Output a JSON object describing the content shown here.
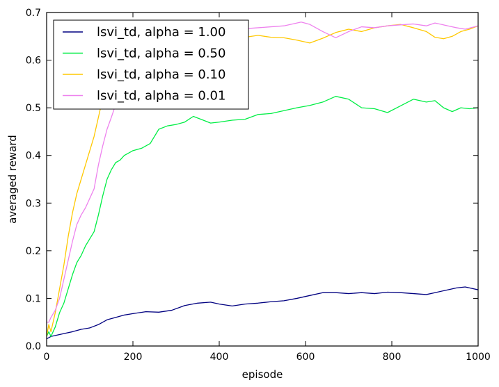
{
  "chart_data": {
    "type": "line",
    "title": "",
    "xlabel": "episode",
    "ylabel": "averaged reward",
    "xlim": [
      0,
      1000
    ],
    "ylim": [
      0,
      0.7
    ],
    "xticks": [
      0,
      200,
      400,
      600,
      800,
      1000
    ],
    "yticks": [
      0.0,
      0.1,
      0.2,
      0.3,
      0.4,
      0.5,
      0.6,
      0.7
    ],
    "xtick_labels": [
      "0",
      "200",
      "400",
      "600",
      "800",
      "1000"
    ],
    "ytick_labels": [
      "0.0",
      "0.1",
      "0.2",
      "0.3",
      "0.4",
      "0.5",
      "0.6",
      "0.7"
    ],
    "grid": false,
    "legend_position": "upper-left",
    "series": [
      {
        "name": "lsvi_td, alpha = 1.00",
        "color": "#000080",
        "x": [
          0,
          10,
          20,
          40,
          60,
          80,
          100,
          120,
          140,
          160,
          180,
          200,
          230,
          260,
          290,
          320,
          350,
          380,
          400,
          430,
          460,
          490,
          520,
          550,
          580,
          610,
          640,
          670,
          700,
          730,
          760,
          790,
          820,
          850,
          880,
          900,
          930,
          950,
          970,
          1000
        ],
        "y": [
          0.015,
          0.02,
          0.022,
          0.026,
          0.03,
          0.035,
          0.038,
          0.045,
          0.055,
          0.06,
          0.065,
          0.068,
          0.072,
          0.071,
          0.075,
          0.085,
          0.09,
          0.092,
          0.088,
          0.084,
          0.088,
          0.09,
          0.093,
          0.095,
          0.1,
          0.106,
          0.112,
          0.112,
          0.11,
          0.112,
          0.11,
          0.113,
          0.112,
          0.11,
          0.108,
          0.112,
          0.118,
          0.122,
          0.124,
          0.118
        ]
      },
      {
        "name": "lsvi_td, alpha = 0.50",
        "color": "#00ee44",
        "x": [
          0,
          5,
          10,
          20,
          30,
          40,
          50,
          60,
          70,
          80,
          90,
          100,
          110,
          120,
          130,
          140,
          150,
          160,
          170,
          180,
          190,
          200,
          220,
          240,
          260,
          280,
          300,
          320,
          340,
          360,
          380,
          400,
          430,
          460,
          490,
          520,
          550,
          580,
          610,
          640,
          670,
          700,
          730,
          760,
          790,
          820,
          850,
          880,
          900,
          920,
          940,
          960,
          980,
          1000
        ],
        "y": [
          0.02,
          0.03,
          0.02,
          0.04,
          0.07,
          0.09,
          0.12,
          0.15,
          0.175,
          0.19,
          0.21,
          0.225,
          0.24,
          0.275,
          0.315,
          0.35,
          0.37,
          0.385,
          0.39,
          0.4,
          0.405,
          0.41,
          0.415,
          0.425,
          0.455,
          0.462,
          0.465,
          0.47,
          0.482,
          0.475,
          0.468,
          0.47,
          0.474,
          0.476,
          0.486,
          0.488,
          0.494,
          0.5,
          0.505,
          0.512,
          0.524,
          0.518,
          0.5,
          0.498,
          0.49,
          0.504,
          0.518,
          0.512,
          0.515,
          0.5,
          0.492,
          0.5,
          0.498,
          0.5
        ]
      },
      {
        "name": "lsvi_td, alpha = 0.10",
        "color": "#ffc800",
        "x": [
          0,
          5,
          10,
          20,
          30,
          40,
          50,
          60,
          70,
          80,
          90,
          100,
          110,
          120,
          130,
          140,
          150,
          165,
          180,
          200,
          230,
          260,
          290,
          320,
          350,
          380,
          400,
          430,
          460,
          490,
          520,
          550,
          580,
          610,
          640,
          670,
          700,
          730,
          760,
          790,
          820,
          850,
          880,
          900,
          920,
          940,
          960,
          980,
          1000
        ],
        "y": [
          0.02,
          0.045,
          0.03,
          0.07,
          0.12,
          0.17,
          0.23,
          0.28,
          0.32,
          0.35,
          0.38,
          0.41,
          0.44,
          0.48,
          0.52,
          0.55,
          0.575,
          0.595,
          0.605,
          0.615,
          0.625,
          0.633,
          0.64,
          0.642,
          0.647,
          0.648,
          0.65,
          0.652,
          0.648,
          0.652,
          0.648,
          0.647,
          0.642,
          0.636,
          0.646,
          0.658,
          0.665,
          0.66,
          0.668,
          0.672,
          0.675,
          0.668,
          0.66,
          0.648,
          0.645,
          0.65,
          0.66,
          0.665,
          0.672
        ]
      },
      {
        "name": "lsvi_td, alpha = 0.01",
        "color": "#ee82ee",
        "x": [
          0,
          5,
          10,
          20,
          30,
          40,
          50,
          60,
          70,
          80,
          90,
          100,
          110,
          120,
          130,
          140,
          150,
          165,
          180,
          200,
          230,
          260,
          290,
          320,
          350,
          380,
          400,
          430,
          460,
          490,
          520,
          550,
          570,
          590,
          610,
          640,
          670,
          700,
          730,
          760,
          790,
          820,
          850,
          880,
          900,
          930,
          950,
          970,
          1000
        ],
        "y": [
          0.05,
          0.05,
          0.06,
          0.075,
          0.1,
          0.14,
          0.18,
          0.22,
          0.255,
          0.275,
          0.29,
          0.31,
          0.33,
          0.38,
          0.42,
          0.455,
          0.48,
          0.52,
          0.545,
          0.575,
          0.6,
          0.625,
          0.64,
          0.648,
          0.652,
          0.656,
          0.66,
          0.664,
          0.666,
          0.668,
          0.67,
          0.672,
          0.676,
          0.68,
          0.675,
          0.66,
          0.647,
          0.66,
          0.67,
          0.668,
          0.672,
          0.674,
          0.676,
          0.672,
          0.678,
          0.672,
          0.668,
          0.665,
          0.672
        ]
      }
    ]
  }
}
